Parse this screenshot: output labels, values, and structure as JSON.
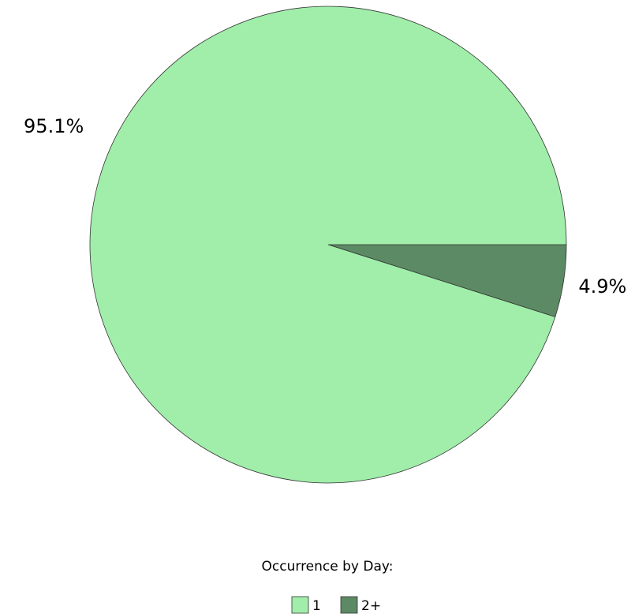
{
  "chart_data": {
    "type": "pie",
    "legend_title": "Occurrence by Day:",
    "categories": [
      "1",
      "2+"
    ],
    "values": [
      95.1,
      4.9
    ],
    "value_labels": [
      "95.1%",
      "4.9%"
    ],
    "colors": [
      "#a0eeaa",
      "#5c8a64"
    ]
  }
}
